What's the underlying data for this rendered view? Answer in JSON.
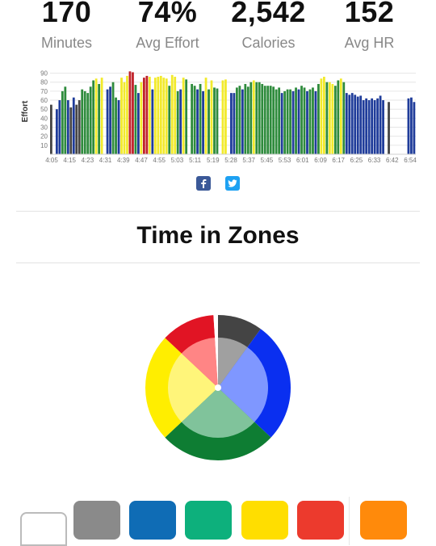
{
  "stats": [
    {
      "value": "170",
      "label": "Minutes"
    },
    {
      "value": "74%",
      "label": "Avg Effort"
    },
    {
      "value": "2,542",
      "label": "Calories"
    },
    {
      "value": "152",
      "label": "Avg HR"
    }
  ],
  "chart_data": [
    {
      "type": "bar",
      "ylabel": "Effort",
      "ylim": [
        0,
        95
      ],
      "yticks": [
        10,
        20,
        30,
        40,
        50,
        60,
        70,
        80,
        90
      ],
      "grid": true,
      "x_tick_labels": [
        "4:05",
        "4:15",
        "4:23",
        "4:31",
        "4:39",
        "4:47",
        "4:55",
        "5:03",
        "5:11",
        "5:19",
        "5:28",
        "5:37",
        "5:45",
        "5:53",
        "6:01",
        "6:09",
        "6:17",
        "6:25",
        "6:33",
        "6:42",
        "6:54"
      ],
      "zone_colors": {
        "gray": "#444444",
        "blue": "#1f3c9a",
        "green": "#2e8b3c",
        "yellow": "#f2ea2b",
        "red": "#c0222a"
      },
      "values": [
        55,
        0,
        50,
        60,
        70,
        75,
        60,
        52,
        63,
        55,
        60,
        72,
        70,
        68,
        75,
        82,
        84,
        78,
        85,
        0,
        72,
        75,
        80,
        63,
        60,
        85,
        80,
        87,
        92,
        91,
        77,
        68,
        80,
        85,
        87,
        86,
        72,
        85,
        86,
        87,
        85,
        84,
        76,
        88,
        86,
        70,
        72,
        85,
        83,
        0,
        78,
        76,
        72,
        78,
        70,
        85,
        72,
        82,
        74,
        73,
        0,
        82,
        83,
        0,
        68,
        68,
        74,
        76,
        72,
        78,
        75,
        80,
        82,
        80,
        80,
        78,
        76,
        76,
        76,
        75,
        72,
        74,
        68,
        70,
        72,
        72,
        70,
        74,
        72,
        76,
        74,
        70,
        72,
        74,
        70,
        78,
        84,
        86,
        80,
        80,
        78,
        76,
        82,
        84,
        80,
        68,
        66,
        68,
        66,
        64,
        65,
        60,
        62,
        60,
        62,
        60,
        62,
        65,
        60,
        0,
        58,
        0,
        0,
        0,
        0,
        0,
        0,
        62,
        63,
        58
      ],
      "colors": [
        "gray",
        "white",
        "blue",
        "blue",
        "green",
        "green",
        "blue",
        "gray",
        "blue",
        "gray",
        "gray",
        "green",
        "green",
        "green",
        "green",
        "green",
        "yellow",
        "green",
        "yellow",
        "white",
        "blue",
        "blue",
        "green",
        "green",
        "blue",
        "yellow",
        "yellow",
        "yellow",
        "red",
        "red",
        "green",
        "blue",
        "yellow",
        "red",
        "red",
        "yellow",
        "blue",
        "yellow",
        "yellow",
        "yellow",
        "yellow",
        "yellow",
        "green",
        "yellow",
        "yellow",
        "green",
        "blue",
        "yellow",
        "green",
        "white",
        "green",
        "green",
        "blue",
        "green",
        "blue",
        "yellow",
        "green",
        "yellow",
        "green",
        "green",
        "white",
        "yellow",
        "yellow",
        "white",
        "blue",
        "blue",
        "green",
        "green",
        "blue",
        "green",
        "green",
        "green",
        "yellow",
        "green",
        "green",
        "green",
        "green",
        "green",
        "green",
        "green",
        "green",
        "green",
        "blue",
        "green",
        "green",
        "green",
        "blue",
        "green",
        "blue",
        "green",
        "green",
        "blue",
        "green",
        "green",
        "blue",
        "green",
        "yellow",
        "yellow",
        "green",
        "yellow",
        "yellow",
        "green",
        "green",
        "yellow",
        "green",
        "blue",
        "blue",
        "blue",
        "blue",
        "blue",
        "blue",
        "blue",
        "blue",
        "blue",
        "blue",
        "blue",
        "blue",
        "blue",
        "blue",
        "white",
        "gray",
        "white",
        "white",
        "white",
        "white",
        "white",
        "white",
        "blue",
        "blue",
        "blue"
      ]
    },
    {
      "type": "pie",
      "title": "Time in Zones",
      "slices": [
        {
          "zone": "gray",
          "color": "#444444",
          "inner_color": "#a0a0a0",
          "value": 10
        },
        {
          "zone": "blue",
          "color": "#0a2ff0",
          "inner_color": "#7f97ff",
          "value": 27
        },
        {
          "zone": "green",
          "color": "#0e7d33",
          "inner_color": "#80c39b",
          "value": 26
        },
        {
          "zone": "yellow",
          "color": "#ffee00",
          "inner_color": "#fff57a",
          "value": 24
        },
        {
          "zone": "red",
          "color": "#e11424",
          "inner_color": "#ff8585",
          "value": 12
        },
        {
          "zone": "white",
          "color": "#ffffff",
          "inner_color": "#ffffff",
          "value": 1
        }
      ]
    }
  ],
  "zones_title": "Time in Zones",
  "social": {
    "facebook_icon": "facebook-icon",
    "twitter_icon": "twitter-icon"
  },
  "zone_swatches": [
    {
      "name": "white",
      "color": "#ffffff"
    },
    {
      "name": "gray",
      "color": "#8a8a8a"
    },
    {
      "name": "blue",
      "color": "#0f6cb5"
    },
    {
      "name": "green",
      "color": "#0db07c"
    },
    {
      "name": "yellow",
      "color": "#ffde00"
    },
    {
      "name": "red",
      "color": "#ec3a2d"
    },
    {
      "name": "orange",
      "color": "#ff8a0b"
    }
  ]
}
